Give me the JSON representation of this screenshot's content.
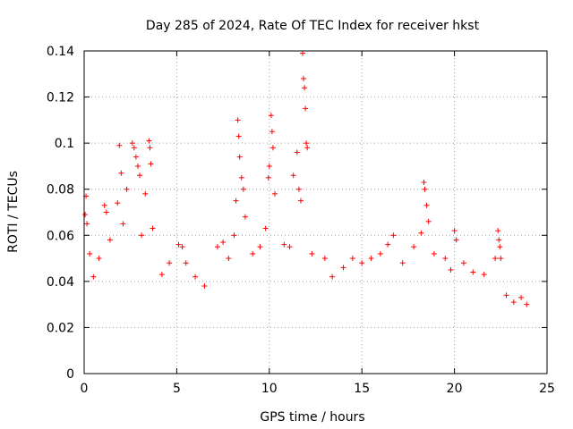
{
  "chart_data": {
    "type": "scatter",
    "title": "Day 285 of 2024, Rate Of TEC Index for receiver hkst",
    "xlabel": "GPS time / hours",
    "ylabel": "ROTI / TECUs",
    "xlim": [
      0,
      25
    ],
    "ylim": [
      0,
      0.14
    ],
    "xticks": [
      "0",
      "5",
      "10",
      "15",
      "20",
      "25"
    ],
    "yticks": [
      "0",
      "0.02",
      "0.04",
      "0.06",
      "0.08",
      "0.1",
      "0.12",
      "0.14"
    ],
    "grid": true,
    "marker": "+",
    "series": [
      {
        "color": "#ff0000",
        "points": [
          [
            0.05,
            0.069
          ],
          [
            0.1,
            0.077
          ],
          [
            0.15,
            0.065
          ],
          [
            0.3,
            0.052
          ],
          [
            0.5,
            0.042
          ],
          [
            0.8,
            0.05
          ],
          [
            1.1,
            0.073
          ],
          [
            1.2,
            0.07
          ],
          [
            1.4,
            0.058
          ],
          [
            1.8,
            0.074
          ],
          [
            1.9,
            0.099
          ],
          [
            2.0,
            0.087
          ],
          [
            2.1,
            0.065
          ],
          [
            2.3,
            0.08
          ],
          [
            2.6,
            0.1
          ],
          [
            2.7,
            0.098
          ],
          [
            2.8,
            0.094
          ],
          [
            2.9,
            0.09
          ],
          [
            3.0,
            0.086
          ],
          [
            3.1,
            0.06
          ],
          [
            3.3,
            0.078
          ],
          [
            3.5,
            0.101
          ],
          [
            3.55,
            0.098
          ],
          [
            3.6,
            0.091
          ],
          [
            3.7,
            0.063
          ],
          [
            4.2,
            0.043
          ],
          [
            4.6,
            0.048
          ],
          [
            5.1,
            0.056
          ],
          [
            5.3,
            0.055
          ],
          [
            5.5,
            0.048
          ],
          [
            6.0,
            0.042
          ],
          [
            6.5,
            0.038
          ],
          [
            7.2,
            0.055
          ],
          [
            7.5,
            0.057
          ],
          [
            7.8,
            0.05
          ],
          [
            8.1,
            0.06
          ],
          [
            8.2,
            0.075
          ],
          [
            8.3,
            0.11
          ],
          [
            8.35,
            0.103
          ],
          [
            8.4,
            0.094
          ],
          [
            8.5,
            0.085
          ],
          [
            8.6,
            0.08
          ],
          [
            8.7,
            0.068
          ],
          [
            9.1,
            0.052
          ],
          [
            9.5,
            0.055
          ],
          [
            9.8,
            0.063
          ],
          [
            9.95,
            0.085
          ],
          [
            10.0,
            0.09
          ],
          [
            10.1,
            0.112
          ],
          [
            10.15,
            0.105
          ],
          [
            10.2,
            0.098
          ],
          [
            10.3,
            0.078
          ],
          [
            10.8,
            0.056
          ],
          [
            11.1,
            0.055
          ],
          [
            11.3,
            0.086
          ],
          [
            11.5,
            0.096
          ],
          [
            11.6,
            0.08
          ],
          [
            11.7,
            0.075
          ],
          [
            11.8,
            0.139
          ],
          [
            11.85,
            0.128
          ],
          [
            11.9,
            0.124
          ],
          [
            11.95,
            0.115
          ],
          [
            12.0,
            0.1
          ],
          [
            12.05,
            0.098
          ],
          [
            12.3,
            0.052
          ],
          [
            13.0,
            0.05
          ],
          [
            13.4,
            0.042
          ],
          [
            14.0,
            0.046
          ],
          [
            14.5,
            0.05
          ],
          [
            15.0,
            0.048
          ],
          [
            15.5,
            0.05
          ],
          [
            16.0,
            0.052
          ],
          [
            16.4,
            0.056
          ],
          [
            16.7,
            0.06
          ],
          [
            17.2,
            0.048
          ],
          [
            17.8,
            0.055
          ],
          [
            18.2,
            0.061
          ],
          [
            18.35,
            0.083
          ],
          [
            18.4,
            0.08
          ],
          [
            18.5,
            0.073
          ],
          [
            18.6,
            0.066
          ],
          [
            18.9,
            0.052
          ],
          [
            19.5,
            0.05
          ],
          [
            19.8,
            0.045
          ],
          [
            20.0,
            0.062
          ],
          [
            20.1,
            0.058
          ],
          [
            20.5,
            0.048
          ],
          [
            21.0,
            0.044
          ],
          [
            21.6,
            0.043
          ],
          [
            22.2,
            0.05
          ],
          [
            22.35,
            0.062
          ],
          [
            22.4,
            0.058
          ],
          [
            22.45,
            0.055
          ],
          [
            22.5,
            0.05
          ],
          [
            22.8,
            0.034
          ],
          [
            23.2,
            0.031
          ],
          [
            23.6,
            0.033
          ],
          [
            23.9,
            0.03
          ]
        ]
      }
    ]
  }
}
